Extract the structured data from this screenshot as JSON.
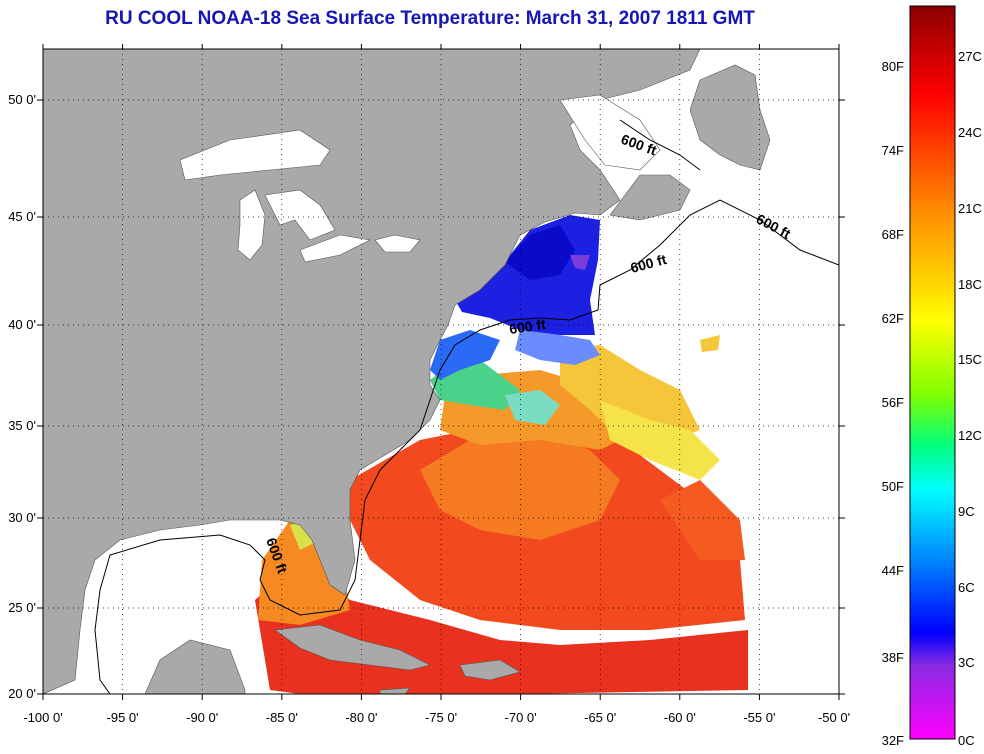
{
  "title": "RU COOL  NOAA-18  Sea Surface Temperature:  March 31, 2007 1811 GMT",
  "map": {
    "lon_range": [
      -100,
      -50
    ],
    "lat_range": [
      20,
      52.5
    ],
    "lon_ticks": [
      "-100 0'",
      "-95 0'",
      "-90 0'",
      "-85 0'",
      "-80 0'",
      "-75 0'",
      "-70 0'",
      "-65 0'",
      "-60 0'",
      "-55 0'",
      "-50 0'"
    ],
    "lat_ticks": [
      "20 0'",
      "25 0'",
      "30 0'",
      "35 0'",
      "40 0'",
      "45 0'",
      "50 0'"
    ],
    "grid": "dotted",
    "land_color": "#a9a9a9",
    "contour_label": "600 ft",
    "contour_labels": [
      "600 ft",
      "600 ft",
      "600 ft",
      "600 ft",
      "600 ft"
    ]
  },
  "colorbar": {
    "fahrenheit_labels": [
      "80F",
      "74F",
      "68F",
      "62F",
      "56F",
      "50F",
      "44F",
      "38F",
      "32F"
    ],
    "celsius_labels": [
      "27C",
      "24C",
      "21C",
      "18C",
      "15C",
      "12C",
      "9C",
      "6C",
      "3C",
      "0C"
    ],
    "colors": [
      "#8b0000",
      "#ff0000",
      "#ff8c00",
      "#ffff00",
      "#00ff00",
      "#00ffff",
      "#0000ff",
      "#8a2be2",
      "#ff00ff"
    ]
  }
}
